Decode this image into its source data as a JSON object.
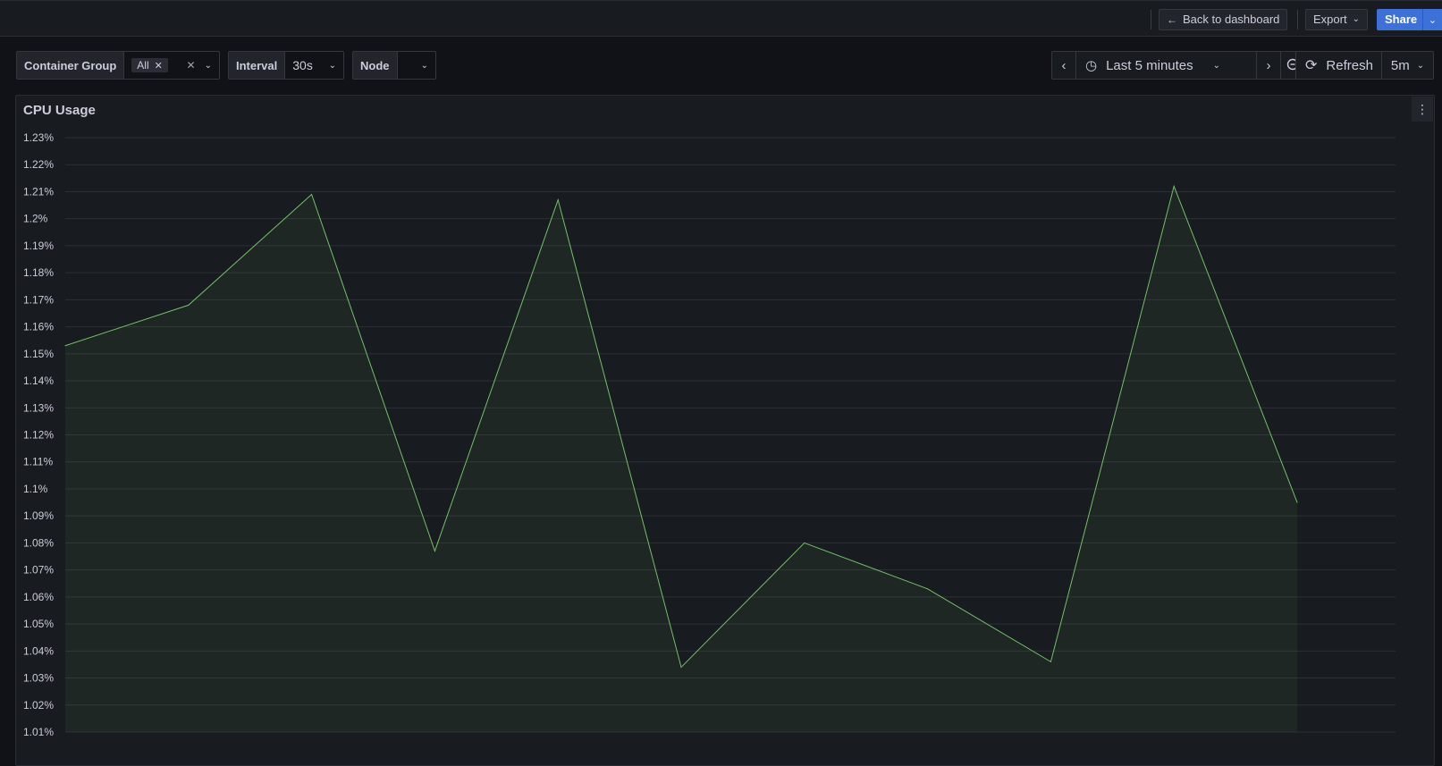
{
  "topbar": {
    "back_label": "Back to dashboard",
    "export_label": "Export",
    "share_label": "Share"
  },
  "variables": {
    "container_group": {
      "label": "Container Group",
      "chip": "All"
    },
    "interval": {
      "label": "Interval",
      "value": "30s"
    },
    "node": {
      "label": "Node",
      "value": ""
    }
  },
  "time": {
    "range_label": "Last 5 minutes",
    "refresh_label": "Refresh",
    "refresh_interval": "5m"
  },
  "panel": {
    "title": "CPU Usage"
  },
  "colors": {
    "series": "#73bf69",
    "accent": "#3d71d9"
  },
  "chart_data": {
    "type": "area",
    "title": "CPU Usage",
    "ylim": [
      1.01,
      1.23
    ],
    "ticks": [
      "1.23%",
      "1.22%",
      "1.21%",
      "1.2%",
      "1.19%",
      "1.18%",
      "1.17%",
      "1.16%",
      "1.15%",
      "1.14%",
      "1.13%",
      "1.12%",
      "1.11%",
      "1.1%",
      "1.09%",
      "1.08%",
      "1.07%",
      "1.06%",
      "1.05%",
      "1.04%",
      "1.03%",
      "1.02%",
      "1.01%"
    ],
    "tick_values": [
      1.23,
      1.22,
      1.21,
      1.2,
      1.19,
      1.18,
      1.17,
      1.16,
      1.15,
      1.14,
      1.13,
      1.12,
      1.11,
      1.1,
      1.09,
      1.08,
      1.07,
      1.06,
      1.05,
      1.04,
      1.03,
      1.02,
      1.01
    ],
    "grid": true,
    "series": [
      {
        "values": [
          1.153,
          1.168,
          1.209,
          1.077,
          1.207,
          1.034,
          1.08,
          1.063,
          1.036,
          1.212,
          1.095
        ],
        "color": "#73bf69"
      }
    ]
  }
}
